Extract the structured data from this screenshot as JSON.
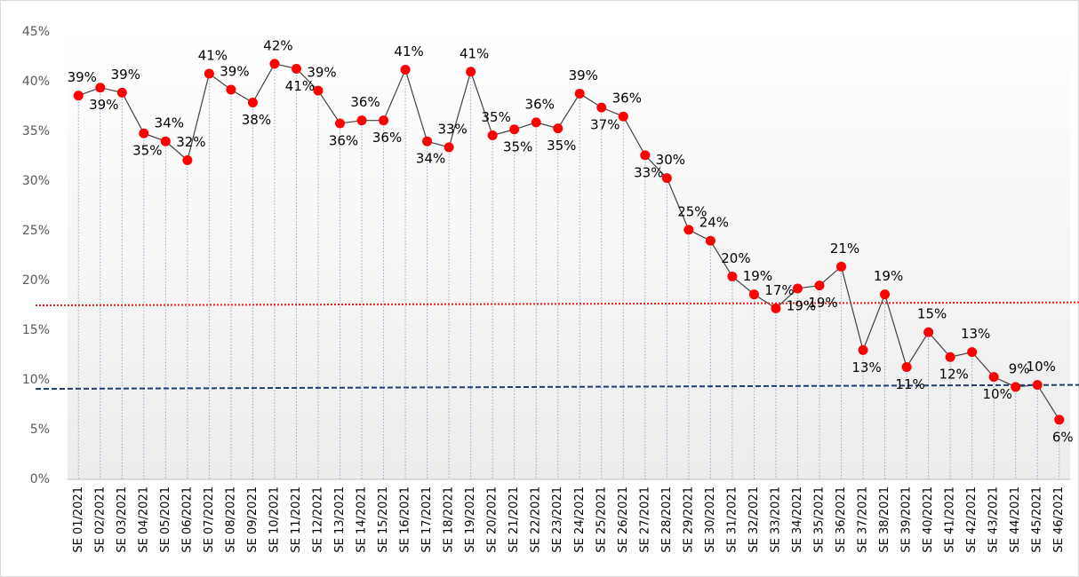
{
  "chart_data": {
    "type": "line",
    "categories": [
      "SE 01/2021",
      "SE 02/2021",
      "SE 03/2021",
      "SE 04/2021",
      "SE 05/2021",
      "SE 06/2021",
      "SE 07/2021",
      "SE 08/2021",
      "SE 09/2021",
      "SE 10/2021",
      "SE 11/2021",
      "SE 12/2021",
      "SE 13/2021",
      "SE 14/2021",
      "SE 15/2021",
      "SE 16/2021",
      "SE 17/2021",
      "SE 18/2021",
      "SE 19/2021",
      "SE 20/2021",
      "SE 21/2021",
      "SE 22/2021",
      "SE 23/2021",
      "SE 24/2021",
      "SE 25/2021",
      "SE 26/2021",
      "SE 27/2021",
      "SE 28/2021",
      "SE 29/2021",
      "SE 30/2021",
      "SE 31/2021",
      "SE 32/2021",
      "SE 33/2021",
      "SE 34/2021",
      "SE 35/2021",
      "SE 36/2021",
      "SE 37/2021",
      "SE 38/2021",
      "SE 39/2021",
      "SE 40/2021",
      "SE 41/2021",
      "SE 42/2021",
      "SE 43/2021",
      "SE 44/2021",
      "SE 45/2021",
      "SE 46/2021"
    ],
    "series": [
      {
        "color": "#ff0000",
        "line_color": "#404040",
        "values": [
          38.6,
          39.4,
          38.9,
          34.8,
          34.0,
          32.1,
          40.8,
          39.2,
          37.9,
          41.8,
          41.3,
          39.1,
          35.8,
          36.1,
          36.1,
          41.2,
          34.0,
          33.4,
          41.0,
          34.6,
          35.2,
          35.9,
          35.3,
          38.8,
          37.4,
          36.5,
          32.6,
          30.3,
          25.1,
          24.0,
          20.4,
          18.6,
          17.2,
          19.2,
          19.5,
          21.4,
          13.0,
          18.6,
          11.3,
          14.8,
          12.3,
          12.8,
          10.3,
          9.3,
          9.5,
          6.0
        ],
        "value_labels": [
          "39%",
          "39%",
          "39%",
          "35%",
          "34%",
          "32%",
          "41%",
          "39%",
          "38%",
          "42%",
          "41%",
          "39%",
          "36%",
          "36%",
          "36%",
          "41%",
          "34%",
          "33%",
          "41%",
          "35%",
          "35%",
          "36%",
          "35%",
          "39%",
          "37%",
          "36%",
          "33%",
          "30%",
          "25%",
          "24%",
          "20%",
          "19%",
          "17%",
          "19%",
          "19%",
          "21%",
          "13%",
          "19%",
          "11%",
          "15%",
          "12%",
          "13%",
          "10%",
          "9%",
          "10%",
          "6%"
        ]
      }
    ],
    "reference_lines": [
      {
        "color": "#e02020",
        "style": "dotted",
        "values": [
          17.5,
          17.8
        ]
      },
      {
        "color": "#1f3f73",
        "style": "dashed",
        "values": [
          9.1,
          9.5
        ]
      }
    ],
    "ylim": [
      0,
      45
    ],
    "yticks": [
      {
        "value": 0,
        "label": "0%"
      },
      {
        "value": 5,
        "label": "5%"
      },
      {
        "value": 10,
        "label": "10%"
      },
      {
        "value": 15,
        "label": "15%"
      },
      {
        "value": 20,
        "label": "20%"
      },
      {
        "value": 25,
        "label": "25%"
      },
      {
        "value": 30,
        "label": "30%"
      },
      {
        "value": 35,
        "label": "35%"
      },
      {
        "value": 40,
        "label": "40%"
      },
      {
        "value": 45,
        "label": "45%"
      }
    ]
  }
}
